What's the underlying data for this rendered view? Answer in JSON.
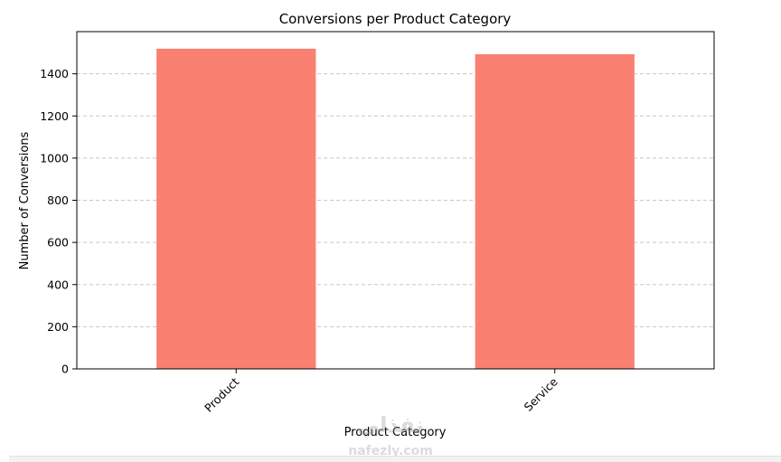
{
  "chart_data": {
    "type": "bar",
    "title": "Conversions per Product Category",
    "xlabel": "Product Category",
    "ylabel": "Number of Conversions",
    "categories": [
      "Product",
      "Service"
    ],
    "values": [
      1519,
      1493
    ],
    "ylim": [
      0,
      1600
    ],
    "yticks": [
      0,
      200,
      400,
      600,
      800,
      1000,
      1200,
      1400
    ],
    "grid": "y-dashed",
    "bar_color": "#fa8072"
  },
  "watermark": {
    "text": "نفذلي",
    "subtext": "nafezly.com"
  }
}
